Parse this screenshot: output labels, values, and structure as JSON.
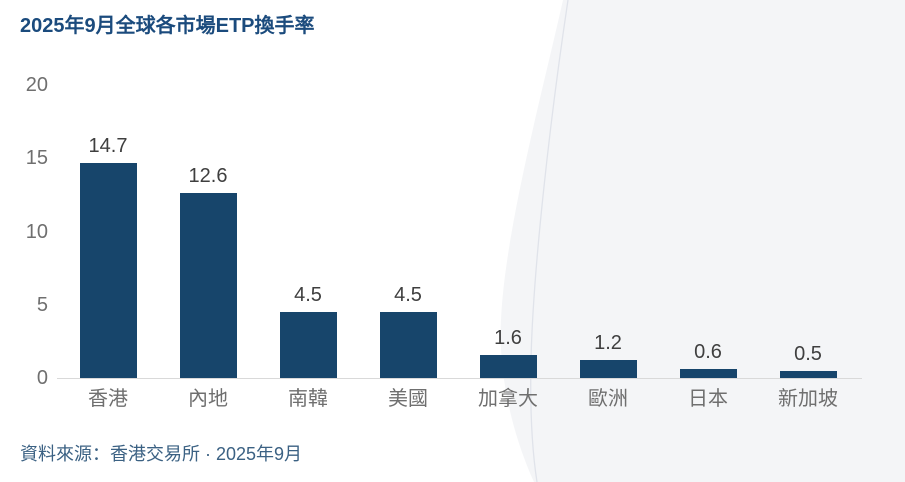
{
  "title": "2025年9月全球各市場ETP換手率",
  "source": "資料來源：香港交易所 · 2025年9月",
  "colors": {
    "bar": "#17456B",
    "title": "#1B4B7D",
    "source_text": "#3B6183",
    "value_label": "#3F3F3F",
    "axis_label": "#6F6F6F",
    "axis_line": "#D9D9D9",
    "bg_shape_fill": "#F4F5F7",
    "bg_shape_line": "#E0E3EA"
  },
  "chart_data": {
    "type": "bar",
    "title": "2025年9月全球各市場ETP換手率",
    "categories": [
      "香港",
      "內地",
      "南韓",
      "美國",
      "加拿大",
      "歐洲",
      "日本",
      "新加坡"
    ],
    "values": [
      14.7,
      12.6,
      4.5,
      4.5,
      1.6,
      1.2,
      0.6,
      0.5
    ],
    "xlabel": "",
    "ylabel": "",
    "ylim": [
      0,
      20
    ],
    "yticks": [
      0,
      5,
      10,
      15,
      20
    ],
    "grid": false,
    "data_labels": true,
    "legend": false,
    "source": "資料來源：香港交易所 · 2025年9月"
  }
}
